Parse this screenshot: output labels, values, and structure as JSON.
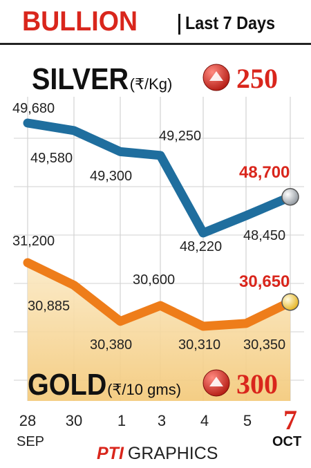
{
  "header": {
    "title": "BULLION",
    "subtitle": "Last 7 Days"
  },
  "silver": {
    "name": "SILVER",
    "unit": "(₹/Kg)",
    "change": "250"
  },
  "gold": {
    "name": "GOLD",
    "unit": "(₹/10 gms)",
    "change": "300"
  },
  "x_axis": {
    "ticks": [
      "28",
      "30",
      "1",
      "3",
      "4",
      "5",
      "7"
    ],
    "start_month": "SEP",
    "end_month": "OCT"
  },
  "credit": {
    "logo": "PTI",
    "text": "GRAPHICS"
  },
  "colors": {
    "silver_line": "#1f6e9e",
    "gold_line": "#ee7d1a",
    "accent": "#d9261c",
    "gold_fill": "#f6d69a"
  },
  "chart_data": [
    {
      "type": "line",
      "title": "SILVER (₹/Kg)",
      "categories": [
        "28 SEP",
        "30",
        "1",
        "3",
        "4",
        "5",
        "7 OCT"
      ],
      "values": [
        49680,
        49580,
        49300,
        49250,
        48220,
        48450,
        48700
      ],
      "labels": [
        "49,680",
        "49,580",
        "49,300",
        "49,250",
        "48,220",
        "48,450",
        "48,700"
      ],
      "change": "250"
    },
    {
      "type": "area",
      "title": "GOLD (₹/10 gms)",
      "categories": [
        "28 SEP",
        "30",
        "1",
        "3",
        "4",
        "5",
        "7 OCT"
      ],
      "values": [
        31200,
        30885,
        30380,
        30600,
        30310,
        30350,
        30650
      ],
      "labels": [
        "31,200",
        "30,885",
        "30,380",
        "30,600",
        "30,310",
        "30,350",
        "30,650"
      ],
      "change": "300"
    }
  ]
}
